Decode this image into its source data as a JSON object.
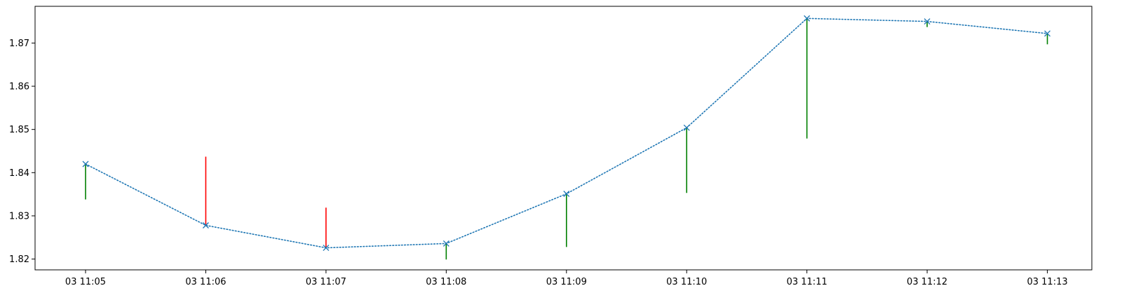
{
  "chart_data": {
    "type": "line",
    "title": "",
    "xlabel": "",
    "ylabel": "",
    "grid": false,
    "legend": "none",
    "x": [
      "03 11:05",
      "03 11:06",
      "03 11:07",
      "03 11:08",
      "03 11:09",
      "03 11:10",
      "03 11:11",
      "03 11:12",
      "03 11:13"
    ],
    "xlim": [
      -0.42,
      8.37
    ],
    "ylim": [
      1.8175,
      1.8785
    ],
    "y_ticks": [
      1.82,
      1.83,
      1.84,
      1.85,
      1.86,
      1.87
    ],
    "y_tick_labels": [
      "1.82",
      "1.83",
      "1.84",
      "1.85",
      "1.86",
      "1.87"
    ],
    "series": [
      {
        "style": "dotted line with x markers",
        "color": "#1f77b4",
        "values": [
          1.842,
          1.8278,
          1.8226,
          1.8236,
          1.8351,
          1.8504,
          1.8757,
          1.875,
          1.8722
        ]
      }
    ],
    "vertical_segments": [
      {
        "x": "03 11:05",
        "from": 1.8338,
        "to": 1.842,
        "color": "#008000"
      },
      {
        "x": "03 11:06",
        "from": 1.8278,
        "to": 1.8437,
        "color": "#ff0000"
      },
      {
        "x": "03 11:07",
        "from": 1.8226,
        "to": 1.8319,
        "color": "#ff0000"
      },
      {
        "x": "03 11:08",
        "from": 1.8199,
        "to": 1.8236,
        "color": "#008000"
      },
      {
        "x": "03 11:09",
        "from": 1.8228,
        "to": 1.8351,
        "color": "#008000"
      },
      {
        "x": "03 11:10",
        "from": 1.8353,
        "to": 1.8504,
        "color": "#008000"
      },
      {
        "x": "03 11:11",
        "from": 1.8479,
        "to": 1.8757,
        "color": "#008000"
      },
      {
        "x": "03 11:12",
        "from": 1.8737,
        "to": 1.875,
        "color": "#008000"
      },
      {
        "x": "03 11:13",
        "from": 1.8697,
        "to": 1.8722,
        "color": "#008000"
      }
    ]
  }
}
